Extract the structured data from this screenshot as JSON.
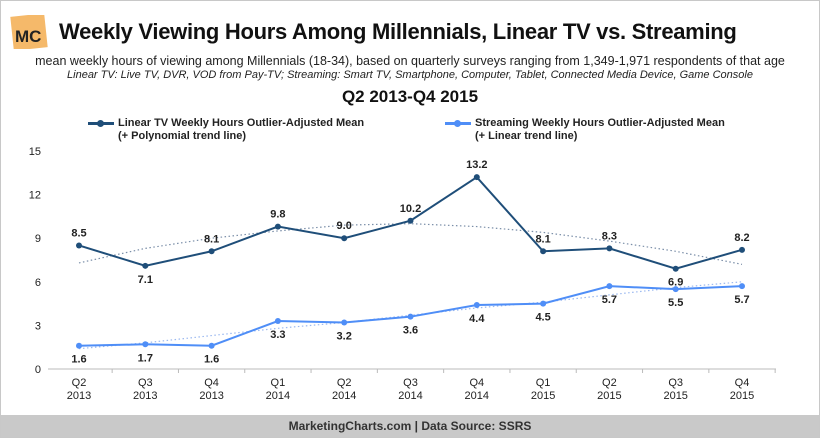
{
  "logo_text": "MC",
  "title": "Weekly Viewing Hours Among Millennials, Linear TV vs. Streaming",
  "subtitle": "mean weekly hours of viewing among Millennials (18-34), based on quarterly surveys ranging from 1,349-1,971 respondents of that age",
  "note": "Linear TV: Live TV, DVR, VOD from Pay-TV; Streaming: Smart TV, Smartphone, Computer, Tablet, Connected Media Device, Game Console",
  "period": "Q2 2013-Q4 2015",
  "footer": "MarketingCharts.com | Data Source: SSRS",
  "chart_data": {
    "type": "line",
    "categories": [
      [
        "Q2",
        "2013"
      ],
      [
        "Q3",
        "2013"
      ],
      [
        "Q4",
        "2013"
      ],
      [
        "Q1",
        "2014"
      ],
      [
        "Q2",
        "2014"
      ],
      [
        "Q3",
        "2014"
      ],
      [
        "Q4",
        "2014"
      ],
      [
        "Q1",
        "2015"
      ],
      [
        "Q2",
        "2015"
      ],
      [
        "Q3",
        "2015"
      ],
      [
        "Q4",
        "2015"
      ]
    ],
    "ylim": [
      0,
      15
    ],
    "yticks": [
      0,
      3,
      6,
      9,
      12,
      15
    ],
    "grid": false,
    "legend_position": "top",
    "series": [
      {
        "name": "Linear TV Weekly Hours Outlier-Adjusted Mean",
        "name_line2": "(+ Polynomial trend line)",
        "color": "#1f4e79",
        "values": [
          8.5,
          7.1,
          8.1,
          9.8,
          9.0,
          10.2,
          13.2,
          8.1,
          8.3,
          6.9,
          8.2
        ],
        "trend": [
          7.3,
          8.3,
          9.0,
          9.5,
          9.9,
          10.0,
          9.8,
          9.4,
          8.8,
          8.1,
          7.2
        ]
      },
      {
        "name": "Streaming Weekly Hours Outlier-Adjusted Mean",
        "name_line2": "(+ Linear trend line)",
        "color": "#4f8ef7",
        "values": [
          1.6,
          1.7,
          1.6,
          3.3,
          3.2,
          3.6,
          4.4,
          4.5,
          5.7,
          5.5,
          5.7
        ],
        "trend": [
          1.4,
          1.8,
          2.3,
          2.8,
          3.2,
          3.7,
          4.2,
          4.6,
          5.1,
          5.6,
          6.0
        ]
      }
    ]
  }
}
